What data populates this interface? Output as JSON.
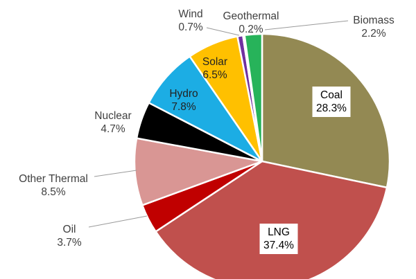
{
  "chart_data": {
    "type": "pie",
    "title": "",
    "start_angle_deg": 0,
    "direction": "clockwise",
    "legend": "none",
    "slices": [
      {
        "label": "Coal",
        "value": 28.3,
        "value_label": "28.3%",
        "color": "#938953"
      },
      {
        "label": "LNG",
        "value": 37.4,
        "value_label": "37.4%",
        "color": "#c0504d"
      },
      {
        "label": "Oil",
        "value": 3.7,
        "value_label": "3.7%",
        "color": "#c00000"
      },
      {
        "label": "Other Thermal",
        "value": 8.5,
        "value_label": "8.5%",
        "color": "#d99694"
      },
      {
        "label": "Nuclear",
        "value": 4.7,
        "value_label": "4.7%",
        "color": "#000000"
      },
      {
        "label": "Hydro",
        "value": 7.8,
        "value_label": "7.8%",
        "color": "#1cade4"
      },
      {
        "label": "Solar",
        "value": 6.5,
        "value_label": "6.5%",
        "color": "#ffc000"
      },
      {
        "label": "Wind",
        "value": 0.7,
        "value_label": "0.7%",
        "color": "#7030a0"
      },
      {
        "label": "Geothermal",
        "value": 0.2,
        "value_label": "0.2%",
        "color": "#1a1aa0"
      },
      {
        "label": "Biomass",
        "value": 2.2,
        "value_label": "2.2%",
        "color": "#27b35a"
      }
    ]
  }
}
